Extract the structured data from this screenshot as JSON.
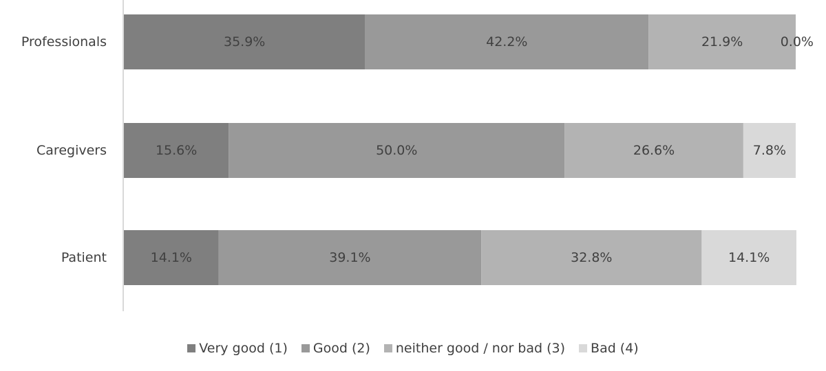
{
  "chart_data": {
    "type": "bar",
    "orientation": "horizontal",
    "stacked": "percent",
    "categories": [
      "Professionals",
      "Caregivers",
      "Patient"
    ],
    "series": [
      {
        "name": "Very good (1)",
        "color": "#7f7f7f",
        "values": [
          35.9,
          15.6,
          14.1
        ],
        "labels": [
          "35.9%",
          "15.6%",
          "14.1%"
        ]
      },
      {
        "name": "Good (2)",
        "color": "#999999",
        "values": [
          42.2,
          50.0,
          39.1
        ],
        "labels": [
          "42.2%",
          "50.0%",
          "39.1%"
        ]
      },
      {
        "name": "neither good / nor bad (3)",
        "color": "#b3b3b3",
        "values": [
          21.9,
          26.6,
          32.8
        ],
        "labels": [
          "21.9%",
          "26.6%",
          "32.8%"
        ]
      },
      {
        "name": "Bad (4)",
        "color": "#d9d9d9",
        "values": [
          0.0,
          7.8,
          14.1
        ],
        "labels": [
          "0.0%",
          "7.8%",
          "14.1%"
        ]
      }
    ],
    "xlim": [
      0,
      100
    ],
    "grid": false,
    "legend_position": "bottom",
    "axis_color": "#d9d9d9",
    "label_color": "#404040"
  }
}
